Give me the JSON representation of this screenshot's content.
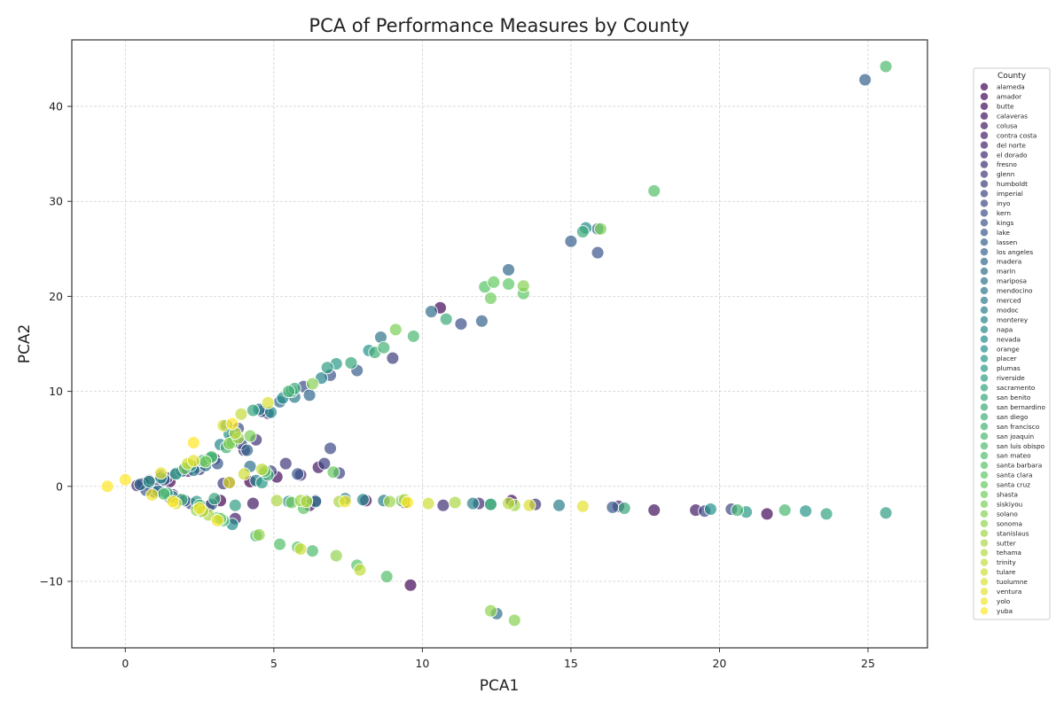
{
  "chart_data": {
    "type": "scatter",
    "title": "PCA of Performance Measures by County",
    "xlabel": "PCA1",
    "ylabel": "PCA2",
    "xlim": [
      -1.8,
      27.0
    ],
    "ylim": [
      -17.0,
      47.0
    ],
    "xticks": [
      0,
      5,
      10,
      15,
      20,
      25
    ],
    "yticks": [
      -10,
      0,
      10,
      20,
      30,
      40
    ],
    "grid": true,
    "legend": {
      "title": "County",
      "placement": "right-outside"
    },
    "colormap": "viridis",
    "series": [
      {
        "name": "alameda",
        "x": [
          0.6,
          1.5,
          3.2,
          4.2
        ],
        "y": [
          0.3,
          0.5,
          -1.5,
          0.5
        ]
      },
      {
        "name": "amador",
        "x": [
          10.6,
          21.6,
          9.6,
          13.0
        ],
        "y": [
          18.8,
          -2.9,
          -10.4,
          -1.5
        ]
      },
      {
        "name": "butte",
        "x": [
          1.2,
          2.8,
          5.1,
          8.1
        ],
        "y": [
          1.1,
          -2.1,
          1.0,
          -1.5
        ]
      },
      {
        "name": "calaveras",
        "x": [
          0.8,
          3.0,
          6.2,
          17.8
        ],
        "y": [
          0.6,
          2.9,
          -2.0,
          -2.5
        ]
      },
      {
        "name": "colusa",
        "x": [
          1.6,
          4.3,
          19.2,
          6.5
        ],
        "y": [
          -0.9,
          -1.8,
          -2.5,
          2.0
        ]
      },
      {
        "name": "contra costa",
        "x": [
          2.1,
          3.7,
          6.4,
          9.4
        ],
        "y": [
          1.6,
          -3.4,
          -1.5,
          -1.7
        ]
      },
      {
        "name": "del norte",
        "x": [
          0.4,
          3.5,
          4.8,
          16.6
        ],
        "y": [
          0.1,
          0.4,
          7.7,
          -2.1
        ]
      },
      {
        "name": "el dorado",
        "x": [
          1.1,
          4.0,
          5.9,
          11.9
        ],
        "y": [
          -0.2,
          3.8,
          1.2,
          -1.8
        ]
      },
      {
        "name": "fresno",
        "x": [
          1.8,
          3.6,
          4.4,
          10.7
        ],
        "y": [
          -1.4,
          5.0,
          4.9,
          -2.0
        ]
      },
      {
        "name": "glenn",
        "x": [
          0.9,
          2.5,
          5.4,
          13.8
        ],
        "y": [
          -0.5,
          1.8,
          2.4,
          -1.9
        ]
      },
      {
        "name": "humboldt",
        "x": [
          1.4,
          3.3,
          6.7,
          9.0
        ],
        "y": [
          0.9,
          0.3,
          2.4,
          13.5
        ]
      },
      {
        "name": "imperial",
        "x": [
          2.2,
          4.9,
          7.2,
          19.5
        ],
        "y": [
          -1.8,
          1.6,
          1.4,
          -2.6
        ]
      },
      {
        "name": "inyo",
        "x": [
          1.0,
          3.9,
          6.9,
          20.4
        ],
        "y": [
          -0.6,
          4.5,
          4.0,
          -2.4
        ]
      },
      {
        "name": "kern",
        "x": [
          1.7,
          3.8,
          6.0,
          11.3
        ],
        "y": [
          1.4,
          6.1,
          10.5,
          17.1
        ]
      },
      {
        "name": "kings",
        "x": [
          2.4,
          4.6,
          6.9,
          15.9
        ],
        "y": [
          2.0,
          7.9,
          11.7,
          24.6
        ]
      },
      {
        "name": "lake",
        "x": [
          0.7,
          3.1,
          5.8,
          16.4
        ],
        "y": [
          -0.4,
          2.4,
          1.3,
          -2.2
        ]
      },
      {
        "name": "lassen",
        "x": [
          1.3,
          4.7,
          7.8,
          15.0
        ],
        "y": [
          0.7,
          1.3,
          12.2,
          25.8
        ]
      },
      {
        "name": "los angeles",
        "x": [
          2.0,
          2.9,
          24.9,
          12.0
        ],
        "y": [
          -1.5,
          -1.9,
          42.8,
          17.4
        ]
      },
      {
        "name": "madera",
        "x": [
          1.9,
          4.1,
          6.2,
          12.9
        ],
        "y": [
          1.6,
          3.8,
          9.6,
          22.8
        ]
      },
      {
        "name": "marin",
        "x": [
          0.5,
          2.6,
          5.2,
          10.3
        ],
        "y": [
          0.2,
          -2.7,
          8.9,
          18.4
        ]
      },
      {
        "name": "mariposa",
        "x": [
          1.5,
          4.2,
          6.4,
          12.5
        ],
        "y": [
          -1.2,
          2.1,
          -1.6,
          -13.4
        ]
      },
      {
        "name": "mendocino",
        "x": [
          2.7,
          4.5,
          8.6,
          15.9
        ],
        "y": [
          2.2,
          8.1,
          15.7,
          27.1
        ]
      },
      {
        "name": "merced",
        "x": [
          1.1,
          3.4,
          5.7,
          8.7
        ],
        "y": [
          -0.5,
          6.4,
          9.4,
          -1.5
        ]
      },
      {
        "name": "modoc",
        "x": [
          2.3,
          4.4,
          7.4,
          14.6
        ],
        "y": [
          1.7,
          0.6,
          -1.3,
          -2.0
        ]
      },
      {
        "name": "monterey",
        "x": [
          1.6,
          3.2,
          6.6,
          11.7
        ],
        "y": [
          -1.1,
          4.4,
          11.4,
          -1.8
        ]
      },
      {
        "name": "napa",
        "x": [
          2.8,
          5.5,
          8.0,
          12.3
        ],
        "y": [
          2.9,
          -1.6,
          -1.4,
          -1.9
        ]
      },
      {
        "name": "nevada",
        "x": [
          1.2,
          3.6,
          5.3,
          15.5
        ],
        "y": [
          0.9,
          -4.0,
          9.3,
          27.2
        ]
      },
      {
        "name": "orange",
        "x": [
          2.9,
          4.9,
          8.2,
          19.7
        ],
        "y": [
          3.0,
          7.8,
          14.3,
          -2.4
        ]
      },
      {
        "name": "placer",
        "x": [
          0.8,
          3.5,
          6.1,
          22.9
        ],
        "y": [
          0.5,
          5.5,
          -1.5,
          -2.6
        ]
      },
      {
        "name": "plumas",
        "x": [
          2.4,
          4.6,
          7.1,
          20.9
        ],
        "y": [
          -1.6,
          0.4,
          12.9,
          -2.7
        ]
      },
      {
        "name": "riverside",
        "x": [
          1.7,
          3.7,
          6.8,
          25.6
        ],
        "y": [
          1.3,
          -2.0,
          12.5,
          -2.8
        ]
      },
      {
        "name": "sacramento",
        "x": [
          2.2,
          4.3,
          5.6,
          23.6
        ],
        "y": [
          2.2,
          8.0,
          10.0,
          -2.9
        ]
      },
      {
        "name": "san benito",
        "x": [
          1.4,
          3.0,
          7.6,
          16.8
        ],
        "y": [
          -0.7,
          -1.3,
          13.0,
          -2.3
        ]
      },
      {
        "name": "san bernardino",
        "x": [
          2.6,
          5.7,
          10.8,
          15.4
        ],
        "y": [
          2.7,
          10.3,
          17.6,
          26.8
        ]
      },
      {
        "name": "san diego",
        "x": [
          1.9,
          4.8,
          8.4,
          12.3
        ],
        "y": [
          -1.4,
          1.2,
          14.1,
          -1.9
        ]
      },
      {
        "name": "san francisco",
        "x": [
          3.4,
          5.5,
          8.7,
          20.6
        ],
        "y": [
          4.1,
          10.0,
          14.6,
          -2.5
        ]
      },
      {
        "name": "san joaquin",
        "x": [
          2.5,
          4.4,
          9.7,
          22.2
        ],
        "y": [
          -2.0,
          -5.2,
          15.8,
          -2.5
        ]
      },
      {
        "name": "san luis obispo",
        "x": [
          1.3,
          3.3,
          6.3,
          25.6
        ],
        "y": [
          -0.8,
          -3.6,
          -6.8,
          44.2
        ]
      },
      {
        "name": "san mateo",
        "x": [
          2.9,
          5.2,
          8.8,
          17.8
        ],
        "y": [
          3.1,
          -6.1,
          -9.5,
          31.1
        ]
      },
      {
        "name": "santa barbara",
        "x": [
          3.1,
          5.8,
          7.8,
          12.1
        ],
        "y": [
          -3.3,
          -6.4,
          -8.3,
          21.0
        ]
      },
      {
        "name": "santa clara",
        "x": [
          3.6,
          6.0,
          12.9,
          13.4
        ],
        "y": [
          4.6,
          -2.3,
          21.3,
          20.3
        ]
      },
      {
        "name": "santa cruz",
        "x": [
          2.0,
          4.7,
          7.0,
          12.4
        ],
        "y": [
          1.9,
          1.6,
          1.5,
          21.5
        ]
      },
      {
        "name": "shasta",
        "x": [
          3.2,
          5.6,
          9.3,
          12.3
        ],
        "y": [
          -3.4,
          -1.7,
          -1.5,
          19.8
        ]
      },
      {
        "name": "siskiyou",
        "x": [
          2.7,
          4.2,
          9.1,
          16.0
        ],
        "y": [
          2.6,
          5.3,
          16.5,
          27.1
        ]
      },
      {
        "name": "solano",
        "x": [
          3.5,
          6.3,
          13.4,
          13.1
        ],
        "y": [
          4.5,
          10.8,
          21.1,
          -14.1
        ]
      },
      {
        "name": "sonoma",
        "x": [
          2.4,
          4.5,
          7.1,
          12.3
        ],
        "y": [
          -2.5,
          -5.1,
          -7.3,
          -13.1
        ]
      },
      {
        "name": "stanislaus",
        "x": [
          3.8,
          5.9,
          8.9,
          13.1
        ],
        "y": [
          5.1,
          -1.5,
          -1.6,
          -2.0
        ]
      },
      {
        "name": "sutter",
        "x": [
          2.8,
          5.1,
          7.2,
          11.1
        ],
        "y": [
          -3.0,
          -1.5,
          -1.6,
          -1.7
        ]
      },
      {
        "name": "tehama",
        "x": [
          3.7,
          6.1,
          9.4,
          12.9
        ],
        "y": [
          5.6,
          -1.6,
          -1.4,
          -1.8
        ]
      },
      {
        "name": "trinity",
        "x": [
          2.6,
          3.9,
          4.6,
          7.9
        ],
        "y": [
          -2.6,
          7.6,
          1.8,
          -8.8
        ]
      },
      {
        "name": "tulare",
        "x": [
          2.1,
          4.0,
          5.9,
          10.2
        ],
        "y": [
          2.4,
          1.3,
          -6.6,
          -1.8
        ]
      },
      {
        "name": "tuolumne",
        "x": [
          1.7,
          3.3,
          4.8,
          13.6
        ],
        "y": [
          -1.8,
          6.4,
          8.8,
          -2.0
        ]
      },
      {
        "name": "ventura",
        "x": [
          1.2,
          2.3,
          3.5,
          15.4
        ],
        "y": [
          1.4,
          2.7,
          0.4,
          -2.1
        ]
      },
      {
        "name": "yolo",
        "x": [
          0.9,
          2.5,
          3.1,
          7.4
        ],
        "y": [
          -0.9,
          -2.3,
          -3.6,
          -1.6
        ]
      },
      {
        "name": "yuba",
        "x": [
          -0.6,
          0.0,
          1.6,
          2.3,
          3.6,
          9.5
        ],
        "y": [
          0.0,
          0.7,
          -1.6,
          4.6,
          6.6,
          -1.7
        ]
      }
    ]
  }
}
